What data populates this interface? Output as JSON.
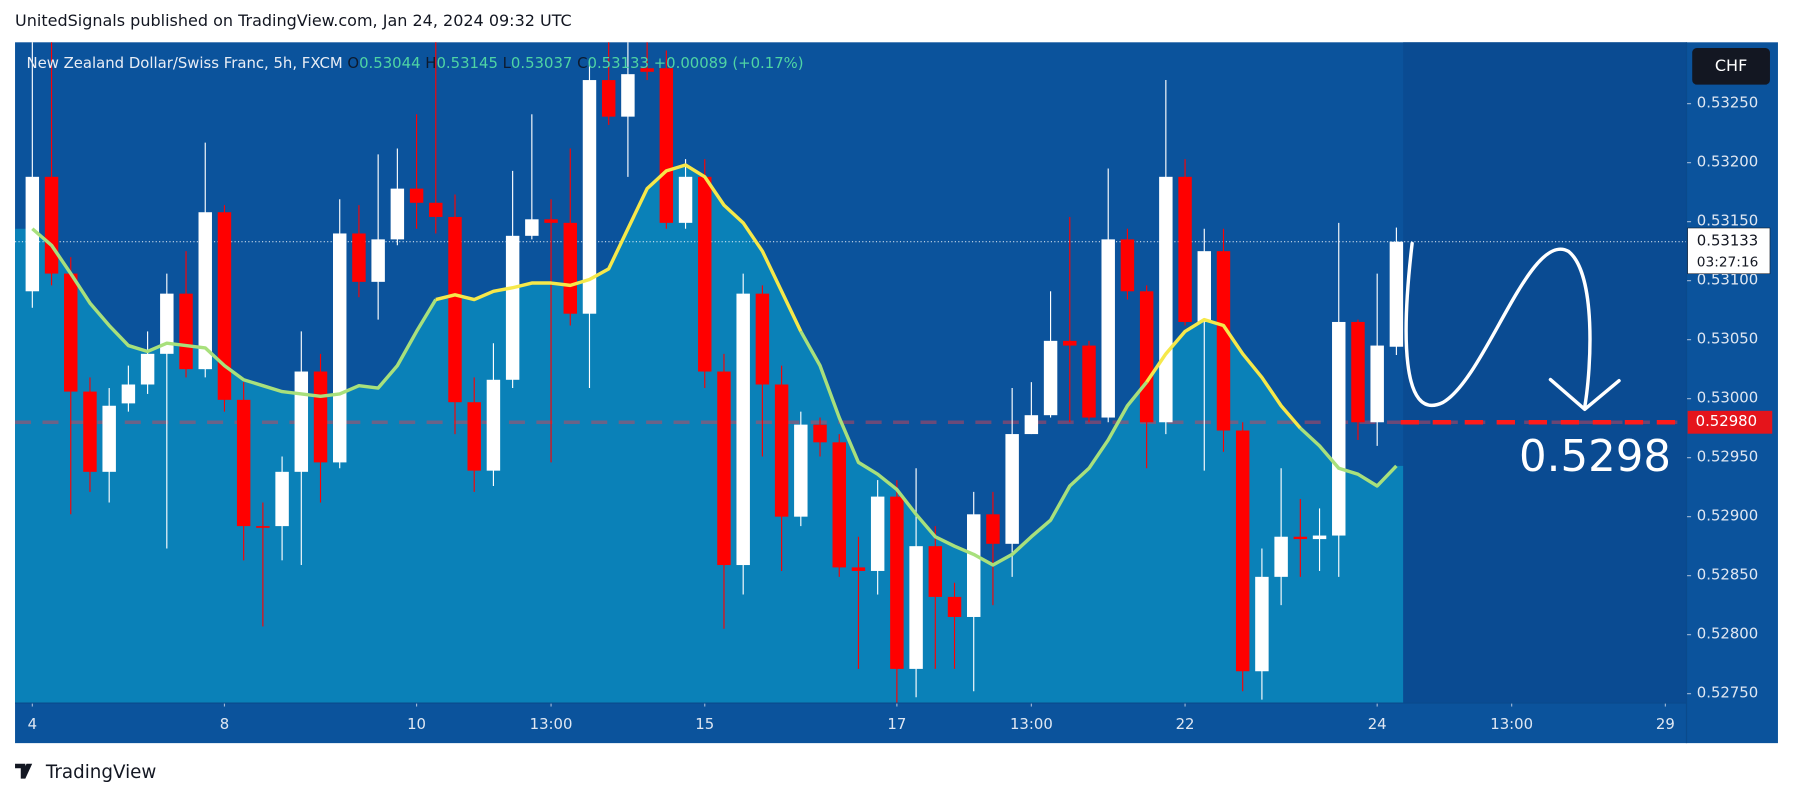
{
  "header": "UnitedSignals published on TradingView.com, Jan 24, 2024 09:32 UTC",
  "footer": "TradingView",
  "chart_data": {
    "type": "candlestick",
    "legend": {
      "symbol": "New Zealand Dollar/Swiss Franc, 5h, FXCM",
      "o_label": "O",
      "o": "0.53044",
      "h_label": "H",
      "h": "0.53145",
      "l_label": "L",
      "l": "0.53037",
      "c_label": "C",
      "c": "0.53133",
      "change": "+0.00089",
      "change_pct": "(+0.17%)"
    },
    "currency": "CHF",
    "up_color": "#ffffff",
    "down_color": "#ff0000",
    "open": [
      0.53091,
      0.53188,
      0.53106,
      0.53006,
      0.52938,
      0.52996,
      0.53012,
      0.53038,
      0.53089,
      0.53025,
      0.53158,
      0.52999,
      0.52892,
      0.52892,
      0.52938,
      0.53023,
      0.52946,
      0.5314,
      0.53099,
      0.53135,
      0.53178,
      0.53166,
      0.53154,
      0.52997,
      0.52939,
      0.53016,
      0.53138,
      0.53152,
      0.53149,
      0.53072,
      0.5327,
      0.53239,
      0.5328,
      0.5328,
      0.53149,
      0.53188,
      0.53023,
      0.52859,
      0.53089,
      0.53012,
      0.529,
      0.52978,
      0.52963,
      0.52857,
      0.52854,
      0.52917,
      0.52771,
      0.52875,
      0.52832,
      0.52815,
      0.52902,
      0.52877,
      0.5297,
      0.52986,
      0.53049,
      0.53045,
      0.52984,
      0.53135,
      0.53091,
      0.5298,
      0.53188,
      0.53065,
      0.53125,
      0.52973,
      0.52769,
      0.52849,
      0.52883,
      0.52881,
      0.52884,
      0.53065,
      0.5298,
      0.53044
    ],
    "high": [
      0.53302,
      0.53302,
      0.5312,
      0.53018,
      0.53009,
      0.53028,
      0.53057,
      0.53106,
      0.53125,
      0.53217,
      0.53164,
      0.53014,
      0.52912,
      0.52951,
      0.53057,
      0.53038,
      0.53169,
      0.53164,
      0.53207,
      0.53212,
      0.53241,
      0.53302,
      0.53173,
      0.53018,
      0.53047,
      0.53193,
      0.53241,
      0.53169,
      0.53212,
      0.53285,
      0.53302,
      0.53302,
      0.53302,
      0.53295,
      0.53203,
      0.53203,
      0.53038,
      0.53106,
      0.53096,
      0.53028,
      0.52989,
      0.52984,
      0.5297,
      0.52883,
      0.52931,
      0.52931,
      0.52941,
      0.52892,
      0.52844,
      0.52921,
      0.52921,
      0.53009,
      0.53014,
      0.53091,
      0.53154,
      0.53049,
      0.53195,
      0.53144,
      0.53096,
      0.5327,
      0.53203,
      0.53144,
      0.53144,
      0.5298,
      0.52873,
      0.52941,
      0.52915,
      0.52907,
      0.53149,
      0.53067,
      0.53106,
      0.53145
    ],
    "low": [
      0.53077,
      0.53096,
      0.52902,
      0.52921,
      0.52912,
      0.52989,
      0.53004,
      0.52873,
      0.53018,
      0.53018,
      0.52989,
      0.52863,
      0.52807,
      0.52863,
      0.52859,
      0.52912,
      0.52941,
      0.53086,
      0.53067,
      0.5313,
      0.53144,
      0.5314,
      0.5297,
      0.52921,
      0.52926,
      0.53009,
      0.53135,
      0.52946,
      0.53062,
      0.53009,
      0.53232,
      0.53188,
      0.5327,
      0.53144,
      0.53144,
      0.53009,
      0.52805,
      0.52834,
      0.52951,
      0.52854,
      0.52892,
      0.52951,
      0.52849,
      0.52771,
      0.52834,
      0.52742,
      0.52747,
      0.52771,
      0.52771,
      0.52752,
      0.52825,
      0.52849,
      0.5297,
      0.52984,
      0.5298,
      0.5298,
      0.5298,
      0.53084,
      0.52941,
      0.5297,
      0.53062,
      0.52939,
      0.52955,
      0.52752,
      0.52745,
      0.52825,
      0.52849,
      0.52854,
      0.52849,
      0.52965,
      0.5296,
      0.53037
    ],
    "close": [
      0.53188,
      0.53106,
      0.53006,
      0.52938,
      0.52994,
      0.53012,
      0.53038,
      0.53089,
      0.53025,
      0.53158,
      0.52999,
      0.52892,
      0.52891,
      0.52938,
      0.53023,
      0.52946,
      0.5314,
      0.53099,
      0.53135,
      0.53178,
      0.53166,
      0.53154,
      0.52997,
      0.52939,
      0.53016,
      0.53138,
      0.53152,
      0.53149,
      0.53072,
      0.5327,
      0.53239,
      0.53275,
      0.53277,
      0.53149,
      0.53188,
      0.53023,
      0.52859,
      0.53089,
      0.53012,
      0.529,
      0.52978,
      0.52963,
      0.52857,
      0.52854,
      0.52917,
      0.52771,
      0.52875,
      0.52832,
      0.52815,
      0.52902,
      0.52877,
      0.5297,
      0.52986,
      0.53049,
      0.53045,
      0.52984,
      0.53135,
      0.53091,
      0.5298,
      0.53188,
      0.53065,
      0.53125,
      0.52973,
      0.52769,
      0.52849,
      0.52883,
      0.52881,
      0.52884,
      0.53065,
      0.5298,
      0.53045,
      0.53133
    ],
    "lines": [
      {
        "color": "#a8e07c",
        "values": [
          0.53144,
          0.5313,
          0.53106,
          0.53081,
          0.53062,
          0.53045,
          0.5304,
          0.53047,
          0.53045,
          0.53043,
          0.53028,
          0.53016,
          0.53011,
          0.53006,
          0.53004,
          0.53002,
          0.53004,
          0.53011,
          0.53009,
          0.53028,
          0.53057,
          0.53084,
          null,
          null,
          null,
          null,
          null,
          null,
          null,
          null,
          null,
          null,
          null,
          null,
          null,
          null,
          null,
          null,
          null,
          null,
          0.53057,
          0.53028,
          0.52984,
          0.52946,
          0.52936,
          0.52923,
          0.52902,
          0.52883,
          0.52875,
          0.52868,
          0.52859,
          0.52868,
          0.52883,
          0.52897,
          0.52926,
          0.52941,
          0.52965,
          0.52994,
          0.53014,
          null,
          null,
          null,
          null,
          null,
          null,
          null,
          0.52975,
          0.5296,
          0.52941,
          0.52936,
          0.52926,
          0.52943
        ]
      },
      {
        "color": "#f6e84a",
        "values": [
          null,
          null,
          null,
          null,
          null,
          null,
          null,
          null,
          null,
          null,
          null,
          null,
          null,
          null,
          null,
          null,
          null,
          null,
          null,
          null,
          null,
          0.53084,
          0.53088,
          0.53084,
          0.53091,
          0.53094,
          0.53098,
          0.53098,
          0.53096,
          0.53101,
          0.5311,
          0.53144,
          0.53178,
          0.53193,
          0.53198,
          0.53188,
          0.53164,
          0.53149,
          0.53125,
          0.53091,
          0.53057,
          null,
          null,
          null,
          null,
          null,
          null,
          null,
          null,
          null,
          null,
          null,
          null,
          null,
          null,
          null,
          null,
          null,
          0.53014,
          0.53038,
          0.53057,
          0.53067,
          0.53062,
          0.53038,
          0.53018,
          0.52994,
          0.52975,
          null,
          null,
          null,
          null,
          null
        ]
      }
    ],
    "area_color": "#0a86bb",
    "xlim": [
      -0.9,
      86.1
    ],
    "xticks": [
      {
        "value": 0,
        "label": "4"
      },
      {
        "value": 10,
        "label": "8"
      },
      {
        "value": 20,
        "label": "10"
      },
      {
        "value": 27,
        "label": "13:00"
      },
      {
        "value": 35,
        "label": "15"
      },
      {
        "value": 45,
        "label": "17"
      },
      {
        "value": 52,
        "label": "13:00"
      },
      {
        "value": 60,
        "label": "22"
      },
      {
        "value": 70,
        "label": "24"
      },
      {
        "value": 77,
        "label": "13:00"
      },
      {
        "value": 85,
        "label": "29"
      }
    ],
    "ylim": [
      0.52742,
      0.53302
    ],
    "yticks": [
      {
        "value": 0.5275,
        "label": "0.52750"
      },
      {
        "value": 0.528,
        "label": "0.52800"
      },
      {
        "value": 0.5285,
        "label": "0.52850"
      },
      {
        "value": 0.529,
        "label": "0.52900"
      },
      {
        "value": 0.5295,
        "label": "0.52950"
      },
      {
        "value": 0.53,
        "label": "0.53000"
      },
      {
        "value": 0.5305,
        "label": "0.53050"
      },
      {
        "value": 0.531,
        "label": "0.53100"
      },
      {
        "value": 0.5315,
        "label": "0.53150"
      },
      {
        "value": 0.532,
        "label": "0.53200"
      },
      {
        "value": 0.5325,
        "label": "0.53250"
      }
    ],
    "grid": false,
    "last_price": 0.53133,
    "countdown": "03:27:16",
    "level": {
      "value": 0.5298,
      "label": "0.52980"
    },
    "annotation": "0.5298"
  }
}
